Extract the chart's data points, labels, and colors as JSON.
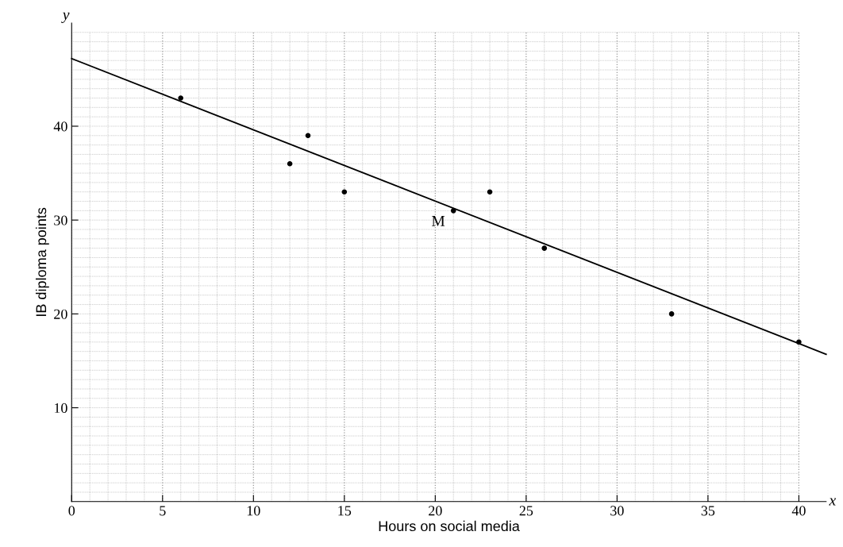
{
  "chart_data": {
    "type": "scatter",
    "xlabel": "Hours on social media",
    "ylabel": "IB diploma points",
    "xlim": [
      0,
      41.5
    ],
    "ylim": [
      0,
      51
    ],
    "xticks": [
      0,
      5,
      10,
      15,
      20,
      25,
      30,
      35,
      40
    ],
    "yticks": [
      10,
      20,
      30,
      40
    ],
    "grid": true,
    "marker": "circle",
    "series": [
      {
        "color": "#000000",
        "x": [
          6,
          12,
          13,
          15,
          21,
          23,
          26,
          33,
          40
        ],
        "values": [
          43,
          36,
          39,
          33,
          31,
          33,
          27,
          20,
          17
        ]
      },
      {
        "type": "line",
        "color": "#000000",
        "x": [
          0,
          41.5
        ],
        "values": [
          47.2,
          15.7
        ],
        "marker": "none",
        "line_style": "solid"
      }
    ],
    "annotations": [
      {
        "text": "M",
        "x": 21,
        "y": 31
      },
      "x",
      "y"
    ]
  }
}
